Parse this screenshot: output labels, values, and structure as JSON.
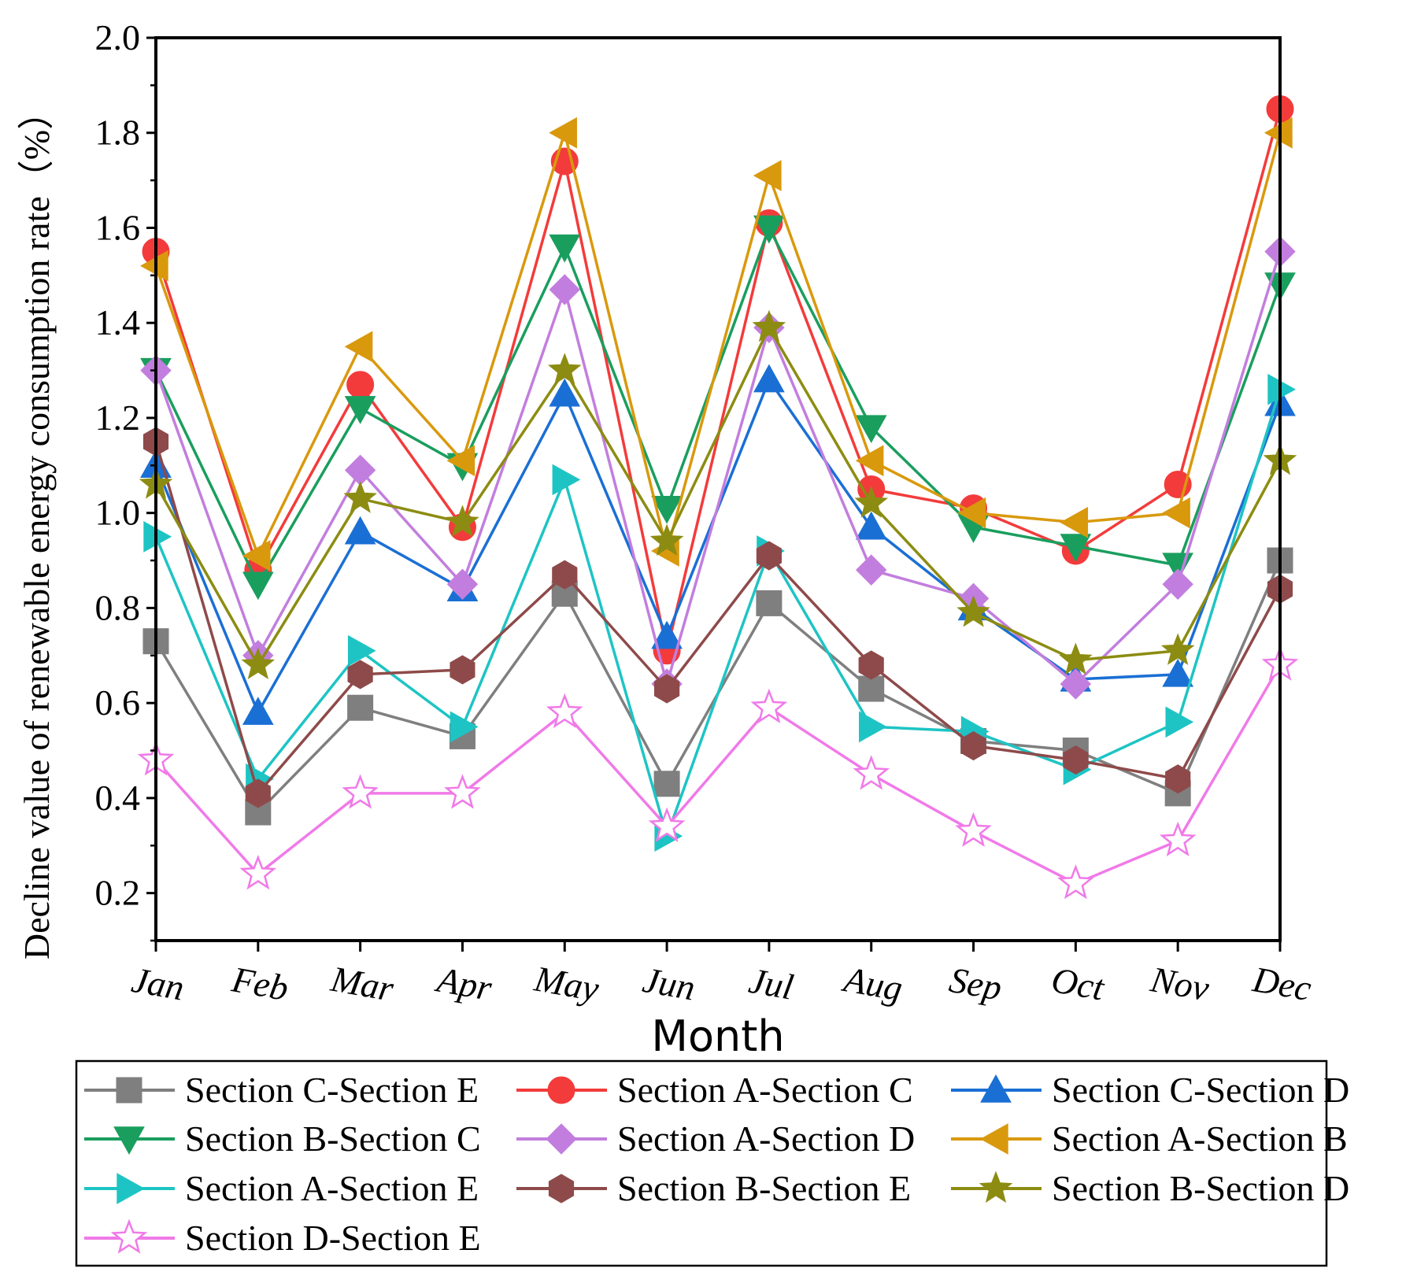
{
  "chart_data": {
    "type": "line",
    "title": "",
    "xlabel": "Month",
    "ylabel": "Decline value of renewable energy consumption rate（%）",
    "categories": [
      "Jan",
      "Feb",
      "Mar",
      "Apr",
      "May",
      "Jun",
      "Jul",
      "Aug",
      "Sep",
      "Oct",
      "Nov",
      "Dec"
    ],
    "ylim": [
      0.1,
      2.0
    ],
    "yticks": [
      0.2,
      0.4,
      0.6,
      0.8,
      1.0,
      1.2,
      1.4,
      1.6,
      1.8,
      2.0
    ],
    "ytick_labels": [
      "0.2",
      "0.4",
      "0.6",
      "0.8",
      "1.0",
      "1.2",
      "1.4",
      "1.6",
      "1.8",
      "2.0"
    ],
    "grid": false,
    "legend_position": "bottom",
    "series": [
      {
        "name": "Section C-Section E",
        "color": "#7f7f7f",
        "marker": "square",
        "values": [
          0.73,
          0.37,
          0.59,
          0.53,
          0.83,
          0.43,
          0.81,
          0.63,
          0.52,
          0.5,
          0.41,
          0.9
        ]
      },
      {
        "name": "Section A-Section C",
        "color": "#f33b3b",
        "marker": "circle",
        "values": [
          1.55,
          0.88,
          1.27,
          0.97,
          1.74,
          0.71,
          1.61,
          1.05,
          1.01,
          0.92,
          1.06,
          1.85
        ]
      },
      {
        "name": "Section C-Section D",
        "color": "#1a6fd4",
        "marker": "triangle-up",
        "values": [
          1.1,
          0.58,
          0.96,
          0.84,
          1.25,
          0.74,
          1.28,
          0.97,
          0.8,
          0.65,
          0.66,
          1.23
        ]
      },
      {
        "name": "Section B-Section C",
        "color": "#1a9e5e",
        "marker": "triangle-down",
        "values": [
          1.3,
          0.85,
          1.22,
          1.1,
          1.56,
          1.01,
          1.6,
          1.18,
          0.97,
          0.93,
          0.89,
          1.48
        ]
      },
      {
        "name": "Section A-Section D",
        "color": "#c27ede",
        "marker": "diamond",
        "values": [
          1.3,
          0.7,
          1.09,
          0.85,
          1.47,
          0.64,
          1.39,
          0.88,
          0.82,
          0.64,
          0.85,
          1.55
        ]
      },
      {
        "name": "Section A-Section B",
        "color": "#d9990d",
        "marker": "triangle-left",
        "values": [
          1.52,
          0.91,
          1.35,
          1.11,
          1.8,
          0.92,
          1.71,
          1.11,
          1.0,
          0.98,
          1.0,
          1.8
        ]
      },
      {
        "name": "Section A-Section E",
        "color": "#1ec4c4",
        "marker": "triangle-right",
        "values": [
          0.95,
          0.44,
          0.71,
          0.55,
          1.07,
          0.32,
          0.92,
          0.55,
          0.54,
          0.46,
          0.56,
          1.26
        ]
      },
      {
        "name": "Section B-Section E",
        "color": "#8e4a4a",
        "marker": "hexagon",
        "values": [
          1.15,
          0.41,
          0.66,
          0.67,
          0.87,
          0.63,
          0.91,
          0.68,
          0.51,
          0.48,
          0.44,
          0.84
        ]
      },
      {
        "name": "Section B-Section D",
        "color": "#8c8c12",
        "marker": "star",
        "values": [
          1.06,
          0.68,
          1.03,
          0.98,
          1.3,
          0.94,
          1.39,
          1.02,
          0.79,
          0.69,
          0.71,
          1.11
        ]
      },
      {
        "name": "Section D-Section E",
        "color": "#f07ae8",
        "marker": "star-open",
        "values": [
          0.48,
          0.24,
          0.41,
          0.41,
          0.58,
          0.34,
          0.59,
          0.45,
          0.33,
          0.22,
          0.31,
          0.68
        ]
      }
    ]
  }
}
